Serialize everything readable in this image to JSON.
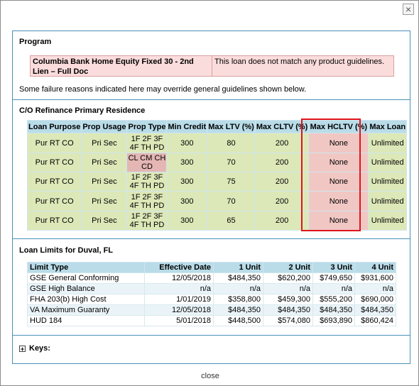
{
  "dialog": {
    "close_symbol": "×",
    "footer_close": "close"
  },
  "program": {
    "title": "Program",
    "name": "Columbia Bank Home Equity Fixed 30 - 2nd Lien – Full Doc",
    "message": "This loan does not match any product guidelines.",
    "note": "Some failure reasons indicated here may override general guidelines shown below."
  },
  "refinance": {
    "title": "C/O Refinance Primary Residence",
    "headers": [
      "Loan Purpose",
      "Prop Usage",
      "Prop Type",
      "Min Credit",
      "Max LTV (%)",
      "Max CLTV (%)",
      "Max HCLTV (%)",
      "Max Loan"
    ],
    "rows": [
      {
        "purpose": "Pur RT CO",
        "usage": "Pri Sec",
        "type": "1F 2F 3F 4F TH PD",
        "credit": "300",
        "ltv": "80",
        "cltv": "200",
        "hcltv": "None",
        "maxloan": "Unlimited"
      },
      {
        "purpose": "Pur RT CO",
        "usage": "Pri Sec",
        "type": "CL CM CH CD",
        "credit": "300",
        "ltv": "70",
        "cltv": "200",
        "hcltv": "None",
        "maxloan": "Unlimited"
      },
      {
        "purpose": "Pur RT CO",
        "usage": "Pri Sec",
        "type": "1F 2F 3F 4F TH PD",
        "credit": "300",
        "ltv": "75",
        "cltv": "200",
        "hcltv": "None",
        "maxloan": "Unlimited"
      },
      {
        "purpose": "Pur RT CO",
        "usage": "Pri Sec",
        "type": "1F 2F 3F 4F TH PD",
        "credit": "300",
        "ltv": "70",
        "cltv": "200",
        "hcltv": "None",
        "maxloan": "Unlimited"
      },
      {
        "purpose": "Pur RT CO",
        "usage": "Pri Sec",
        "type": "1F 2F 3F 4F TH PD",
        "credit": "300",
        "ltv": "65",
        "cltv": "200",
        "hcltv": "None",
        "maxloan": "Unlimited"
      }
    ]
  },
  "limits": {
    "title": "Loan Limits for Duval, FL",
    "headers": [
      "Limit Type",
      "Effective Date",
      "1 Unit",
      "2 Unit",
      "3 Unit",
      "4 Unit"
    ],
    "rows": [
      {
        "type": "GSE General Conforming",
        "date": "12/05/2018",
        "u1": "$484,350",
        "u2": "$620,200",
        "u3": "$749,650",
        "u4": "$931,600"
      },
      {
        "type": "GSE High Balance",
        "date": "n/a",
        "u1": "n/a",
        "u2": "n/a",
        "u3": "n/a",
        "u4": "n/a"
      },
      {
        "type": "FHA 203(b) High Cost",
        "date": "1/01/2019",
        "u1": "$358,800",
        "u2": "$459,300",
        "u3": "$555,200",
        "u4": "$690,000"
      },
      {
        "type": "VA Maximum Guaranty",
        "date": "12/05/2018",
        "u1": "$484,350",
        "u2": "$484,350",
        "u3": "$484,350",
        "u4": "$484,350"
      },
      {
        "type": "HUD 184",
        "date": "5/01/2018",
        "u1": "$448,500",
        "u2": "$574,080",
        "u3": "$693,890",
        "u4": "$860,424"
      }
    ]
  },
  "keys": {
    "toggle_symbol": "+",
    "label": "Keys:"
  }
}
